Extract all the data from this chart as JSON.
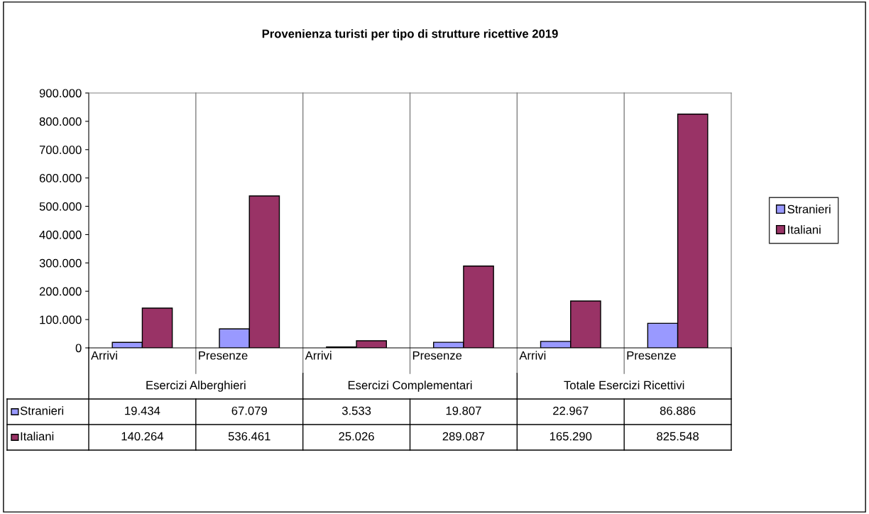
{
  "chart_data": {
    "type": "bar",
    "title": "Provenienza turisti per tipo di strutture ricettive 2019",
    "categories": [
      "Arrivi",
      "Presenze",
      "Arrivi",
      "Presenze",
      "Arrivi",
      "Presenze"
    ],
    "annotations": [
      "Esercizi Alberghieri",
      "Esercizi Complementari",
      "Totale Esercizi Ricettivi"
    ],
    "series": [
      {
        "name": "Stranieri",
        "color": "#9999ff",
        "values": [
          19434,
          67079,
          3533,
          19807,
          22967,
          86886
        ],
        "value_labels": [
          "19.434",
          "67.079",
          "3.533",
          "19.807",
          "22.967",
          "86.886"
        ]
      },
      {
        "name": "Italiani",
        "color": "#993366",
        "values": [
          140264,
          536461,
          25026,
          289087,
          165290,
          825548
        ],
        "value_labels": [
          "140.264",
          "536.461",
          "25.026",
          "289.087",
          "165.290",
          "825.548"
        ]
      }
    ],
    "ylim": [
      0,
      900000
    ],
    "yticks": [
      0,
      {
        "value": 100000,
        "label": "100.000"
      },
      {
        "value": 200000,
        "label": "200.000"
      },
      {
        "value": 300000,
        "label": "300.000"
      },
      {
        "value": 400000,
        "label": "400.000"
      },
      {
        "value": 500000,
        "label": "500.000"
      },
      {
        "value": 600000,
        "label": "600.000"
      },
      {
        "value": 700000,
        "label": "700.000"
      },
      {
        "value": 800000,
        "label": "800.000"
      },
      {
        "value": 900000,
        "label": "900.000"
      }
    ],
    "grid": false,
    "legend": "right"
  }
}
